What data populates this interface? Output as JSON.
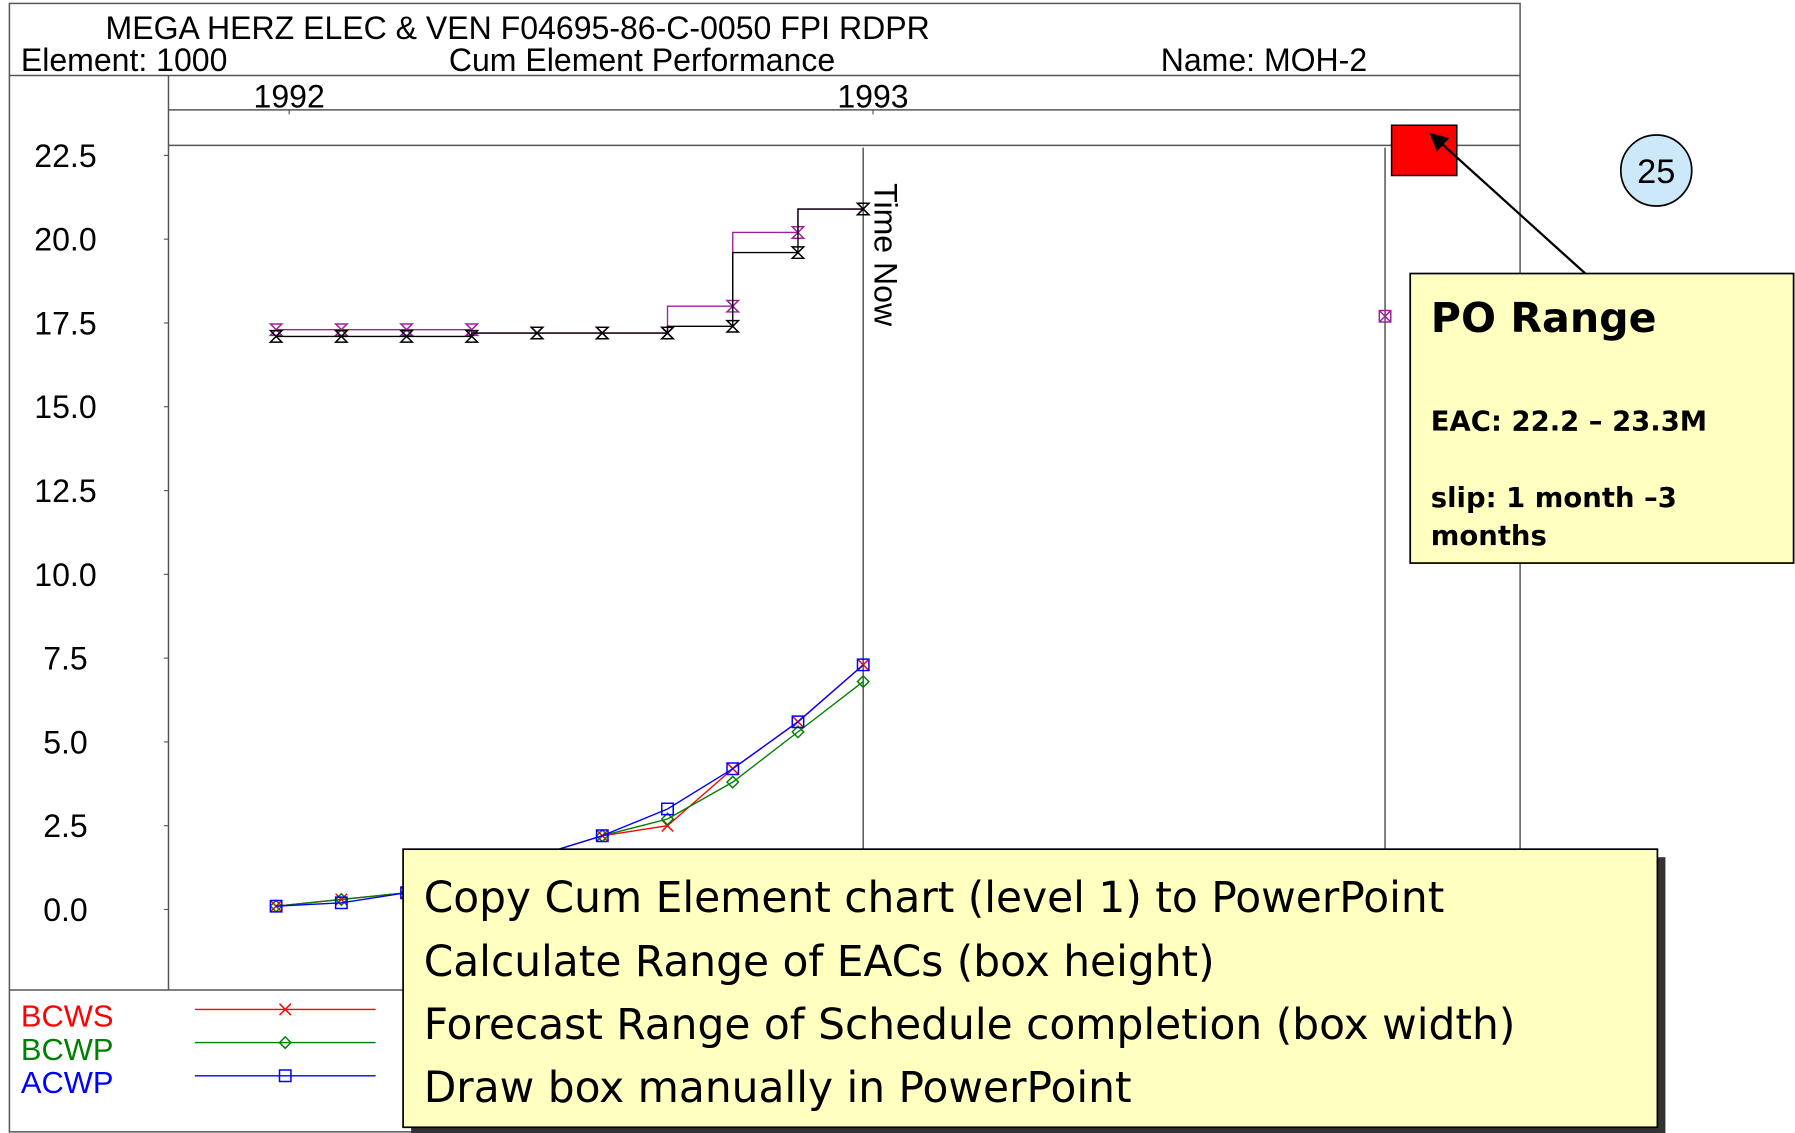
{
  "chart_data": {
    "type": "line",
    "title": "MEGA HERZ ELEC & VEN F04695-86-C-0050 FPI RDPR",
    "element_label": "Element: 1000",
    "subtitle": "Cum Element Performance",
    "name_label": "Name: MOH-2",
    "x": [
      0,
      1,
      2,
      3,
      4,
      5,
      6,
      7,
      8,
      9
    ],
    "xlim": [
      -1.65,
      19.07
    ],
    "xticks": [
      {
        "value": 0.2,
        "label": "1992"
      },
      {
        "value": 9.15,
        "label": "1993"
      }
    ],
    "ylim": [
      -2.4,
      22.8
    ],
    "yticks": [
      {
        "value": 0,
        "label": "0.0"
      },
      2.5,
      {
        "value": 5,
        "label": "5.0"
      },
      7.5,
      {
        "value": 10,
        "label": "10.0"
      },
      12.5,
      {
        "value": 15,
        "label": "15.0"
      },
      17.5,
      {
        "value": 20,
        "label": "20.0"
      },
      22.5
    ],
    "series": [
      {
        "name": "BCWS",
        "color": "#ff0000",
        "marker": "x",
        "values": [
          0.1,
          0.3,
          0.5,
          1.0,
          1.6,
          2.2,
          2.5,
          4.2,
          5.6,
          7.3
        ]
      },
      {
        "name": "BCWP",
        "color": "#008000",
        "marker": "diamond",
        "values": [
          0.1,
          0.3,
          0.5,
          1.0,
          1.6,
          2.2,
          2.7,
          3.8,
          5.3,
          6.8
        ]
      },
      {
        "name": "ACWP",
        "color": "#0000ff",
        "marker": "square",
        "values": [
          0.1,
          0.2,
          0.5,
          1.0,
          1.6,
          2.2,
          3.0,
          4.2,
          5.6,
          7.3
        ]
      },
      {
        "color": "#a020a0",
        "marker": "bowtie",
        "drawstyle": "steps-pre",
        "values": [
          17.3,
          17.3,
          17.3,
          17.3,
          17.2,
          17.2,
          17.2,
          18.0,
          20.2,
          20.9
        ]
      },
      {
        "color": "#000000",
        "marker": "bowtie",
        "drawstyle": "steps-pre",
        "values": [
          17.1,
          17.1,
          17.1,
          17.1,
          17.2,
          17.2,
          17.2,
          17.4,
          19.6,
          20.9
        ]
      },
      {
        "color": "#a020a0",
        "marker": "square-x",
        "x": [
          17
        ],
        "values": [
          17.7
        ]
      }
    ],
    "vlines": [
      {
        "x": 9,
        "label": "Time Now"
      },
      {
        "x": 17
      }
    ],
    "range_box": {
      "xlim": [
        17.1,
        18.1
      ],
      "ylim": [
        21.9,
        23.4
      ],
      "color": "#ff0000"
    }
  },
  "slide_number": "25",
  "callout": {
    "title": "PO Range",
    "lines": [
      "EAC:  22.2 – 23.3M",
      "slip:  1 month –3",
      "months"
    ]
  },
  "note": {
    "lines": [
      "Copy Cum Element chart (level 1) to PowerPoint",
      "Calculate Range of EACs (box height)",
      "Forecast Range of Schedule completion (box width)",
      "Draw box manually in PowerPoint"
    ]
  }
}
